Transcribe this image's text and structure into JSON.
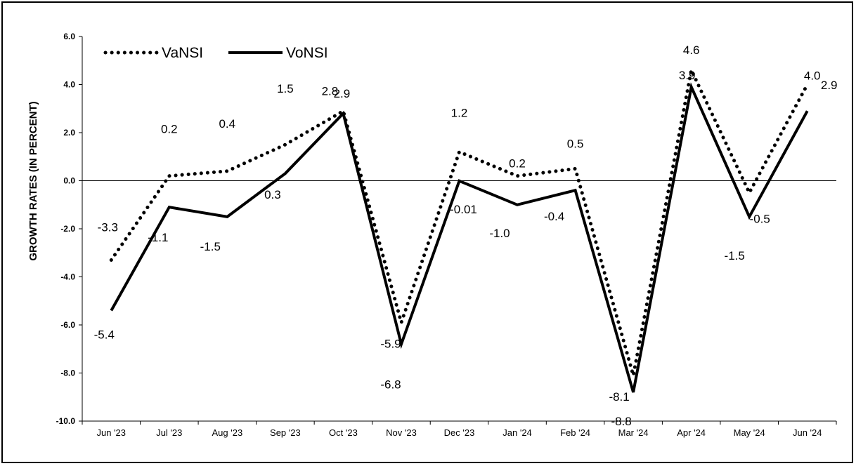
{
  "chart_data": {
    "type": "line",
    "categories": [
      "Jun '23",
      "Jul '23",
      "Aug '23",
      "Sep '23",
      "Oct '23",
      "Nov '23",
      "Dec '23",
      "Jan '24",
      "Feb '24",
      "Mar '24",
      "Apr '24",
      "May '24",
      "Jun '24"
    ],
    "series": [
      {
        "name": "VaNSI",
        "style": "dotted",
        "values": [
          -3.3,
          0.2,
          0.4,
          1.5,
          2.9,
          -5.9,
          1.2,
          0.2,
          0.5,
          -8.1,
          4.6,
          -0.5,
          4.0
        ],
        "labels": [
          "-3.3",
          "0.2",
          "0.4",
          "1.5",
          "2.9",
          "-5.9",
          "1.2",
          "0.2",
          "0.5",
          "-8.1",
          "4.6",
          "-0.5",
          "4.0"
        ]
      },
      {
        "name": "VoNSI",
        "style": "solid",
        "values": [
          -5.4,
          -1.1,
          -1.5,
          0.3,
          2.8,
          -6.8,
          -0.01,
          -1.0,
          -0.4,
          -8.8,
          3.9,
          -1.5,
          2.9
        ],
        "labels": [
          "-5.4",
          "-1.1",
          "-1.5",
          "0.3",
          "2.8",
          "-6.8",
          "-0.01",
          "-1.0",
          "-0.4",
          "-8.8",
          "3.9",
          "-1.5",
          "2.9"
        ]
      }
    ],
    "title": "",
    "xlabel": "",
    "ylabel": "GROWTH RATES (IN PERCENT)",
    "ylim": [
      -10,
      6
    ],
    "yticks": [
      "6.0",
      "4.0",
      "2.0",
      "0.0",
      "-2.0",
      "-4.0",
      "-6.0",
      "-8.0",
      "-10.0"
    ],
    "grid": false,
    "legend_position": "top-left",
    "colors": {
      "line": "#000000",
      "background": "#ffffff"
    }
  }
}
